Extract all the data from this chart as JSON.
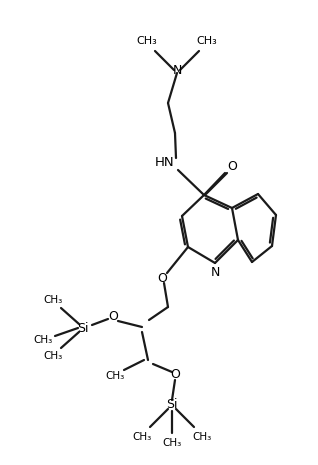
{
  "background_color": "#ffffff",
  "bond_color": "#1a1a1a",
  "line_width": 1.6,
  "figsize": [
    3.18,
    4.65
  ],
  "dpi": 100,
  "xlim": [
    0,
    318
  ],
  "ylim": [
    0,
    465
  ]
}
